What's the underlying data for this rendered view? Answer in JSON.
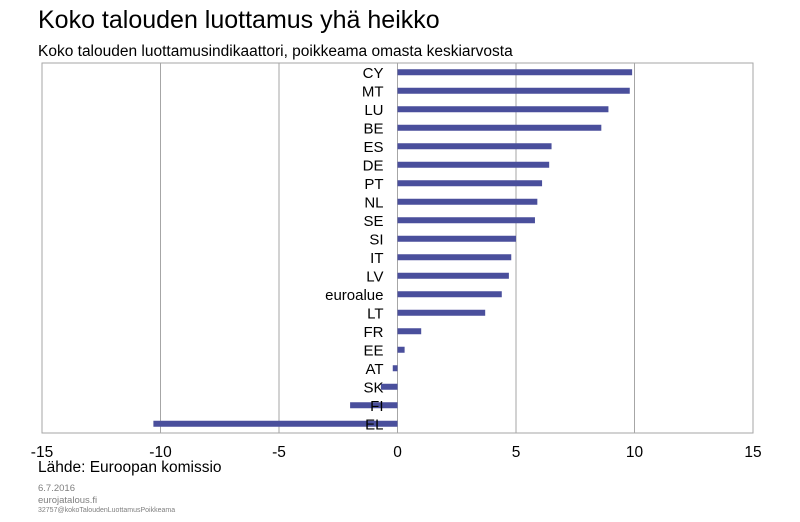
{
  "title": "Koko talouden luottamus yhä heikko",
  "subtitle": "Koko talouden luottamusindikaattori, poikkeama omasta keskiarvosta",
  "source": "Lähde: Euroopan komissio",
  "date": "6.7.2016",
  "site": "eurojatalous.fi",
  "code": "32757@kokoTaloudenLuottamusPoikkeama",
  "chart_data": {
    "type": "bar",
    "orientation": "horizontal",
    "categories": [
      "CY",
      "MT",
      "LU",
      "BE",
      "ES",
      "DE",
      "PT",
      "NL",
      "SE",
      "SI",
      "IT",
      "LV",
      "euroalue",
      "LT",
      "FR",
      "EE",
      "AT",
      "SK",
      "FI",
      "EL"
    ],
    "values": [
      9.9,
      9.8,
      8.9,
      8.6,
      6.5,
      6.4,
      6.1,
      5.9,
      5.8,
      5.0,
      4.8,
      4.7,
      4.4,
      3.7,
      1.0,
      0.3,
      -0.2,
      -0.7,
      -2.0,
      -10.3
    ],
    "xlim": [
      -15,
      15
    ],
    "xticks": [
      -15,
      -10,
      -5,
      0,
      5,
      10,
      15
    ],
    "bar_color": "#4a4f9c",
    "grid": true
  }
}
